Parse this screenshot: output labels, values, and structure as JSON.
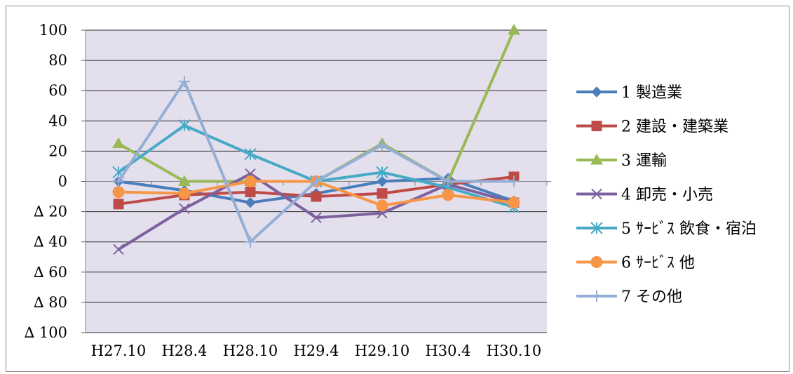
{
  "chart_data": {
    "type": "line",
    "categories": [
      "H27.10",
      "H28.4",
      "H28.10",
      "H29.4",
      "H29.10",
      "H30.4",
      "H30.10"
    ],
    "ylim": [
      -100,
      100
    ],
    "yticks": [
      {
        "value": 100,
        "label": "100"
      },
      {
        "value": 80,
        "label": "80"
      },
      {
        "value": 60,
        "label": "60"
      },
      {
        "value": 40,
        "label": "40"
      },
      {
        "value": 20,
        "label": "20"
      },
      {
        "value": 0,
        "label": "0"
      },
      {
        "value": -20,
        "label": "∆ 20"
      },
      {
        "value": -40,
        "label": "∆ 40"
      },
      {
        "value": -60,
        "label": "∆ 60"
      },
      {
        "value": -80,
        "label": "∆ 80"
      },
      {
        "value": -100,
        "label": "∆ 100"
      }
    ],
    "grid": true,
    "legend_position": "right",
    "plot_background": "#e4dfec",
    "series": [
      {
        "name": "1 製造業",
        "color": "#4a7ebb",
        "marker": "diamond",
        "values": [
          0,
          -6,
          -14,
          -8,
          0,
          2,
          -13
        ]
      },
      {
        "name": "2 建設・建築業",
        "color": "#be4b48",
        "marker": "square",
        "values": [
          -15,
          -9,
          -7,
          -10,
          -8,
          -2,
          3
        ]
      },
      {
        "name": "3 運輸",
        "color": "#98b954",
        "marker": "triangle",
        "values": [
          25,
          0,
          0,
          0,
          25,
          0,
          100
        ]
      },
      {
        "name": "4 卸売・小売",
        "color": "#7d60a0",
        "marker": "x",
        "values": [
          -45,
          -18,
          5,
          -24,
          -21,
          -2,
          -14
        ]
      },
      {
        "name": "5 ｻｰﾋﾞｽ 飲食・宿泊",
        "color": "#46aac5",
        "marker": "asterisk",
        "values": [
          6,
          37,
          18,
          0,
          6,
          -4,
          -17
        ]
      },
      {
        "name": "6 ｻｰﾋﾞｽ 他",
        "color": "#f79646",
        "marker": "circle",
        "values": [
          -7,
          -8,
          0,
          0,
          -16,
          -9,
          -14
        ]
      },
      {
        "name": "7 その他",
        "color": "#94aed6",
        "marker": "plus",
        "values": [
          0,
          66,
          -40,
          0,
          24,
          0,
          0
        ]
      }
    ]
  }
}
